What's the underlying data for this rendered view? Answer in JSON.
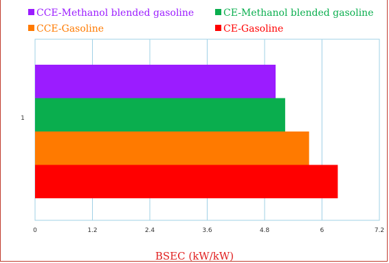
{
  "chart_data": {
    "type": "bar",
    "orientation": "horizontal",
    "categories": [
      "1"
    ],
    "series": [
      {
        "name": "CCE-Methanol blended gasoline",
        "color": "#9B1CFF",
        "values": [
          5.03
        ]
      },
      {
        "name": "CE-Methanol blended gasoline",
        "color": "#0AAE4E",
        "values": [
          5.23
        ]
      },
      {
        "name": "CCE-Gasoline",
        "color": "#FF7A00",
        "values": [
          5.73
        ]
      },
      {
        "name": "CE-Gasoline",
        "color": "#FF0000",
        "values": [
          6.33
        ]
      }
    ],
    "xlabel": "BSEC (kW/kW)",
    "ylabel": "",
    "xlim": [
      0,
      7.2
    ],
    "xticks": [
      "0",
      "1.2",
      "2.4",
      "3.6",
      "4.8",
      "6",
      "7.2"
    ],
    "grid": "vertical",
    "legend_position": "top"
  }
}
